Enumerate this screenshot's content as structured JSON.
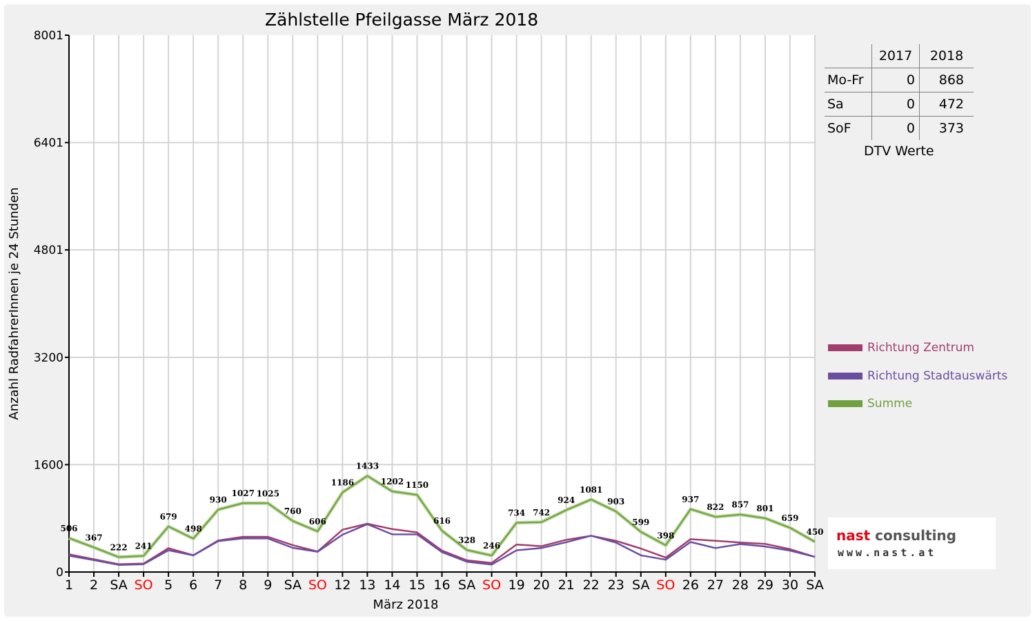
{
  "colors": {
    "zentrum": "#a23d6e",
    "stadtauswaerts": "#6a4fa0",
    "summe": "#70a040",
    "weekend_red": "#ff0000",
    "grid": "#d4d4d4"
  },
  "table": {
    "headers": [
      "",
      "2017",
      "2018"
    ],
    "rows": [
      {
        "label": "Mo-Fr",
        "v2017": "0",
        "v2018": "868"
      },
      {
        "label": "Sa",
        "v2017": "0",
        "v2018": "472"
      },
      {
        "label": "SoF",
        "v2017": "0",
        "v2018": "373"
      }
    ],
    "caption": "DTV Werte"
  },
  "logo": {
    "name_part1": "nast",
    "name_part2": "consulting",
    "url": "www.nast.at"
  },
  "chart_data": {
    "type": "line",
    "title": "Zählstelle Pfeilgasse März 2018",
    "xlabel": "März 2018",
    "ylabel": "Anzahl RadfahrerInnen je 24 Stunden",
    "ylim": [
      0,
      8001
    ],
    "yticks": [
      "8001",
      "6401",
      "4801",
      "3200",
      "1600",
      "0"
    ],
    "ytick_values": [
      8001,
      6401,
      4801,
      3200,
      1600,
      0
    ],
    "grid": true,
    "legend_position": "right",
    "categories": [
      "1",
      "2",
      "SA",
      "SO",
      "5",
      "6",
      "7",
      "8",
      "9",
      "SA",
      "SO",
      "12",
      "13",
      "14",
      "15",
      "16",
      "SA",
      "SO",
      "19",
      "20",
      "21",
      "22",
      "23",
      "SA",
      "SO",
      "26",
      "27",
      "28",
      "29",
      "30",
      "SA"
    ],
    "weekend_red": [
      false,
      false,
      false,
      true,
      false,
      false,
      false,
      false,
      false,
      false,
      true,
      false,
      false,
      false,
      false,
      false,
      false,
      true,
      false,
      false,
      false,
      false,
      false,
      false,
      true,
      false,
      false,
      false,
      false,
      false,
      false
    ],
    "series": [
      {
        "name": "Richtung Zentrum",
        "values": [
          263,
          190,
          116,
          125,
          355,
          250,
          470,
          525,
          525,
          400,
          305,
          630,
          720,
          640,
          590,
          320,
          175,
          135,
          410,
          385,
          480,
          540,
          465,
          350,
          215,
          490,
          465,
          440,
          420,
          340,
          225
        ]
      },
      {
        "name": "Richtung Stadtauswärts",
        "values": [
          243,
          177,
          106,
          116,
          324,
          248,
          460,
          502,
          500,
          360,
          301,
          556,
          713,
          562,
          560,
          296,
          153,
          111,
          324,
          357,
          444,
          541,
          438,
          249,
          183,
          447,
          357,
          417,
          381,
          319,
          225
        ]
      },
      {
        "name": "Summe",
        "values": [
          506,
          367,
          222,
          241,
          679,
          498,
          930,
          1027,
          1025,
          760,
          606,
          1186,
          1433,
          1202,
          1150,
          616,
          328,
          246,
          734,
          742,
          924,
          1081,
          903,
          599,
          398,
          937,
          822,
          857,
          801,
          659,
          450
        ],
        "data_labels": [
          "506",
          "367",
          "222",
          "241",
          "679",
          "498",
          "930",
          "1027",
          "1025",
          "760",
          "606",
          "1186",
          "1433",
          "1202",
          "1150",
          "616",
          "328",
          "246",
          "734",
          "742",
          "924",
          "1081",
          "903",
          "599",
          "398",
          "937",
          "822",
          "857",
          "801",
          "659",
          "450"
        ]
      }
    ]
  }
}
